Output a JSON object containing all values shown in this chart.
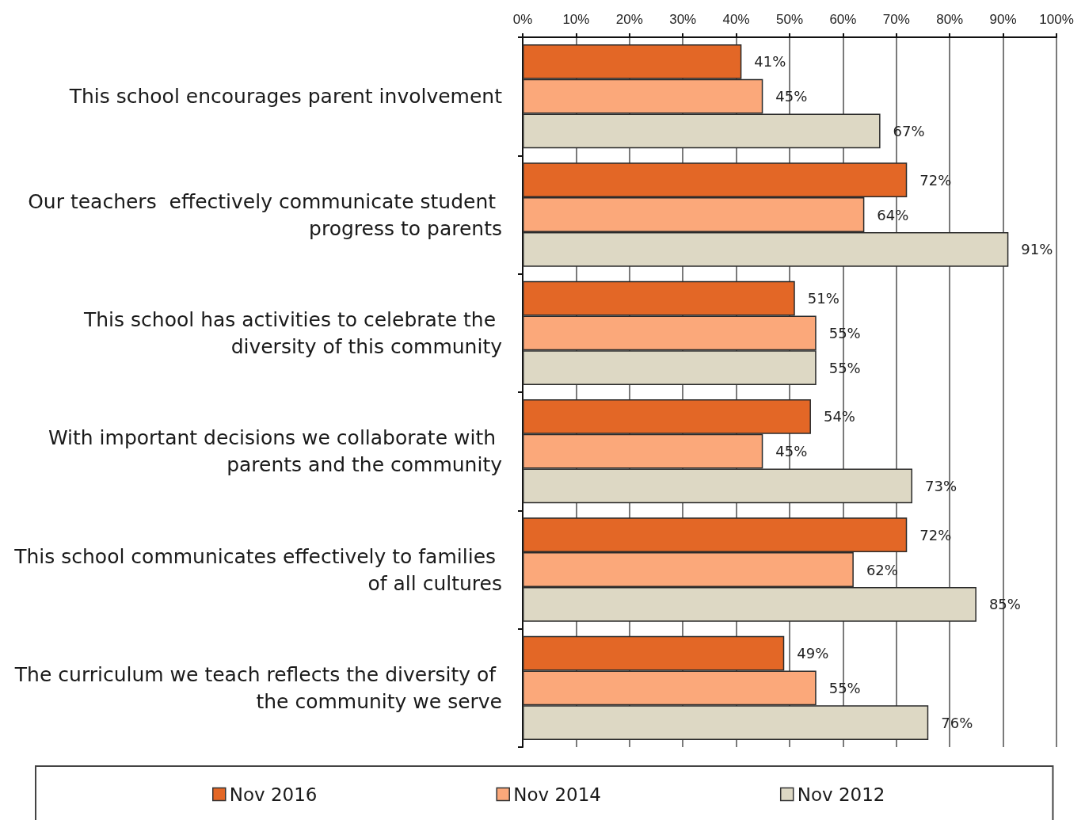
{
  "chart_data": {
    "type": "bar",
    "orientation": "horizontal",
    "categories": [
      "This school encourages parent involvement",
      "Our teachers  effectively communicate student progress to parents",
      "This school has activities to celebrate the diversity of this community",
      "With important decisions we collaborate with parents and the community",
      "This school communicates effectively to families of all cultures",
      "The curriculum we teach reflects the diversity of the community we serve"
    ],
    "series": [
      {
        "name": "Nov 2016",
        "color": "#e36726",
        "values": [
          41,
          72,
          51,
          54,
          72,
          49
        ],
        "value_labels": [
          "41%",
          "72%",
          "51%",
          "54%",
          "72%",
          "49%"
        ]
      },
      {
        "name": "Nov 2014",
        "color": "#fba87a",
        "values": [
          45,
          64,
          55,
          45,
          62,
          55
        ],
        "value_labels": [
          "45%",
          "64%",
          "55%",
          "45%",
          "62%",
          "55%"
        ]
      },
      {
        "name": "Nov 2012",
        "color": "#ddd8c4",
        "values": [
          67,
          91,
          55,
          73,
          85,
          76
        ],
        "value_labels": [
          "67%",
          "91%",
          "55%",
          "73%",
          "85%",
          "76%"
        ]
      }
    ],
    "xlim": [
      0,
      100
    ],
    "xticks": [
      {
        "value": 0,
        "label": "0%"
      },
      {
        "value": 10,
        "label": "10%"
      },
      {
        "value": 20,
        "label": "20%"
      },
      {
        "value": 30,
        "label": "30%"
      },
      {
        "value": 40,
        "label": "40%"
      },
      {
        "value": 50,
        "label": "50%"
      },
      {
        "value": 60,
        "label": "60%"
      },
      {
        "value": 70,
        "label": "70%"
      },
      {
        "value": 80,
        "label": "80%"
      },
      {
        "value": 90,
        "label": "90%"
      },
      {
        "value": 100,
        "label": "100%"
      }
    ],
    "grid": "x",
    "legend": "bottom"
  }
}
